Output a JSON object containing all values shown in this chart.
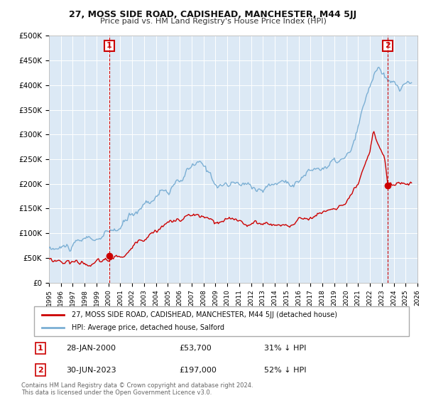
{
  "title": "27, MOSS SIDE ROAD, CADISHEAD, MANCHESTER, M44 5JJ",
  "subtitle": "Price paid vs. HM Land Registry's House Price Index (HPI)",
  "ylim": [
    0,
    500000
  ],
  "yticks": [
    0,
    50000,
    100000,
    150000,
    200000,
    250000,
    300000,
    350000,
    400000,
    450000,
    500000
  ],
  "ytick_labels": [
    "£0",
    "£50K",
    "£100K",
    "£150K",
    "£200K",
    "£250K",
    "£300K",
    "£350K",
    "£400K",
    "£450K",
    "£500K"
  ],
  "hpi_color": "#7bafd4",
  "price_color": "#cc0000",
  "background_color": "#ffffff",
  "plot_bg_color": "#dce9f5",
  "grid_color": "#ffffff",
  "sale1_year": 2000.08,
  "sale1_price": 53700,
  "sale1_label": "1",
  "sale2_year": 2023.5,
  "sale2_price": 197000,
  "sale2_label": "2",
  "legend_line1": "27, MOSS SIDE ROAD, CADISHEAD, MANCHESTER, M44 5JJ (detached house)",
  "legend_line2": "HPI: Average price, detached house, Salford",
  "annotation1_date": "28-JAN-2000",
  "annotation1_price": "£53,700",
  "annotation1_hpi": "31% ↓ HPI",
  "annotation2_date": "30-JUN-2023",
  "annotation2_price": "£197,000",
  "annotation2_hpi": "52% ↓ HPI",
  "footer": "Contains HM Land Registry data © Crown copyright and database right 2024.\nThis data is licensed under the Open Government Licence v3.0.",
  "xmin": 1995,
  "xmax": 2026
}
